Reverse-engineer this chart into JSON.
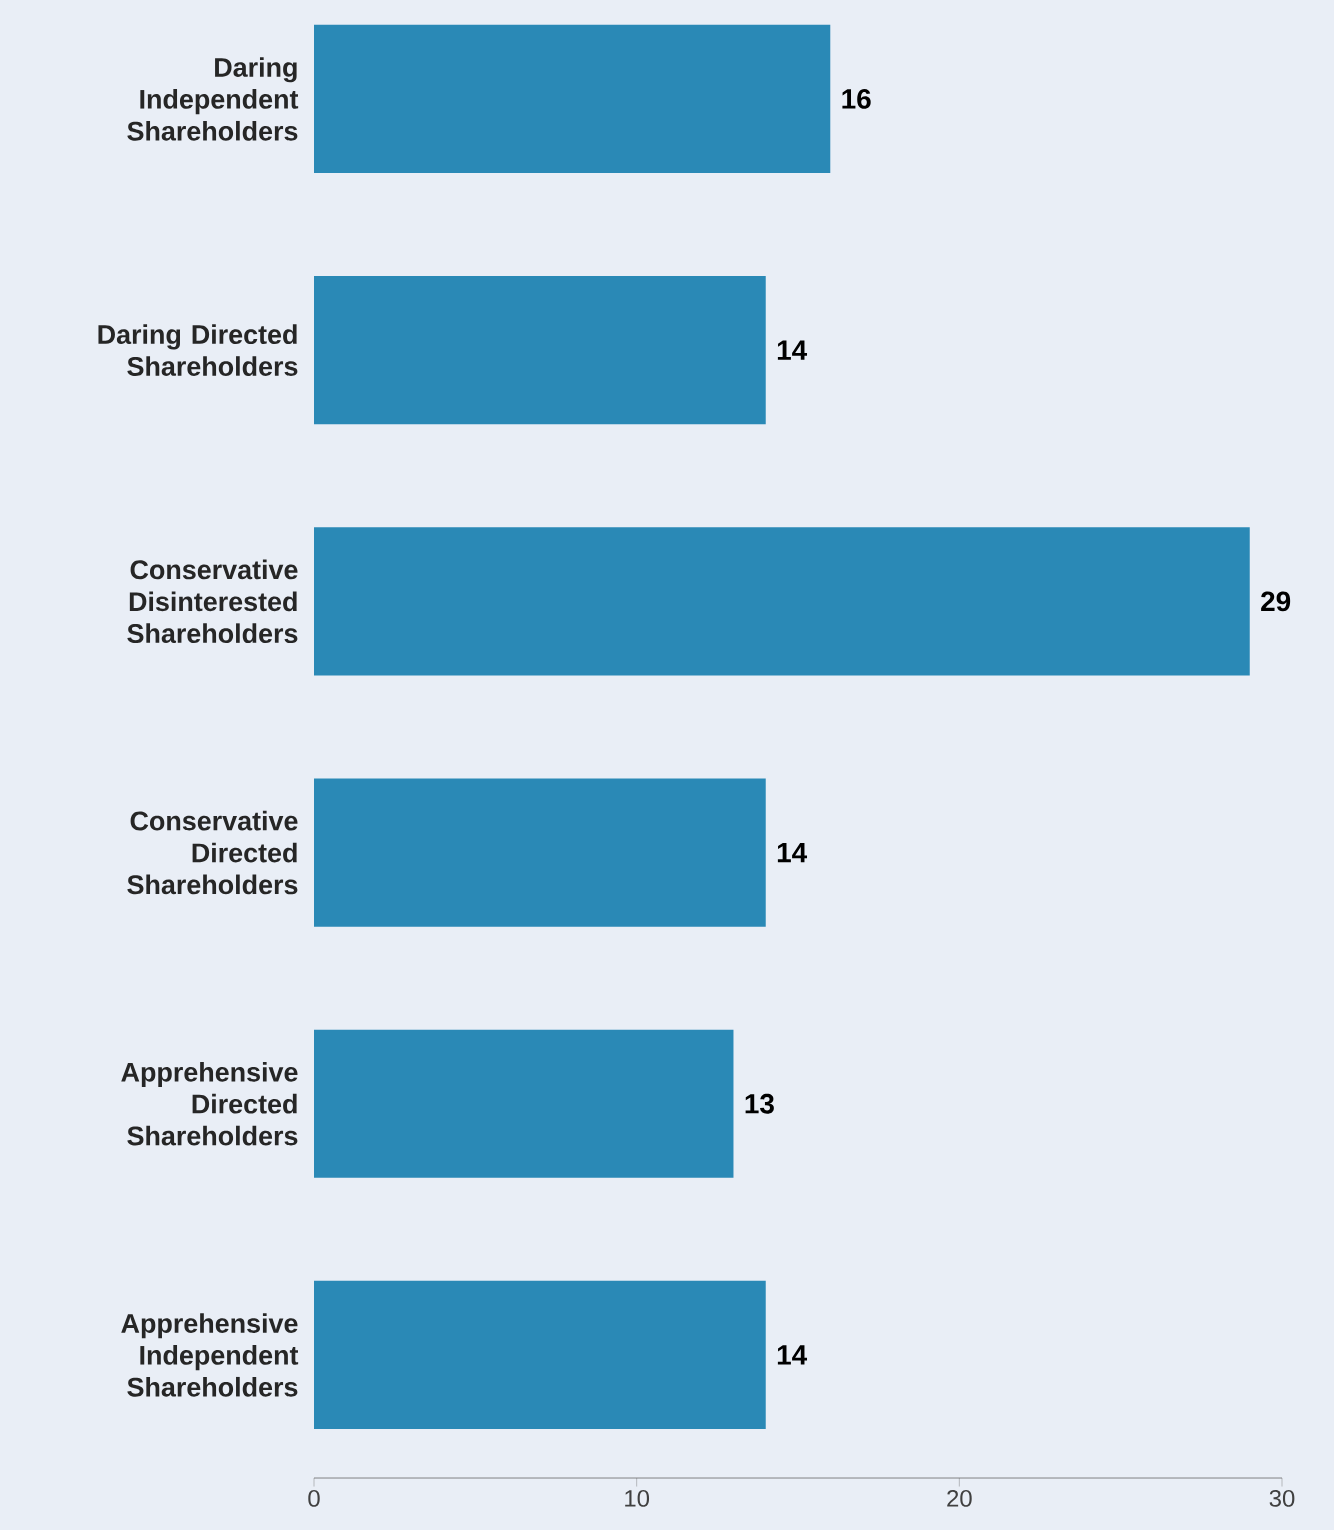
{
  "chart_data": {
    "type": "bar",
    "orientation": "horizontal",
    "categories": [
      "Daring Independent Shareholders",
      "Daring Directed Shareholders",
      "Conservative Disinterested Shareholders",
      "Conservative Directed Shareholders",
      "Apprehensive Directed Shareholders",
      "Apprehensive Independent Shareholders"
    ],
    "values": [
      16,
      14,
      29,
      14,
      13,
      14
    ],
    "color": "#2a89b6",
    "xlim": [
      0,
      30
    ],
    "xticks": [
      0,
      10,
      20,
      30
    ],
    "data_labels": true
  }
}
